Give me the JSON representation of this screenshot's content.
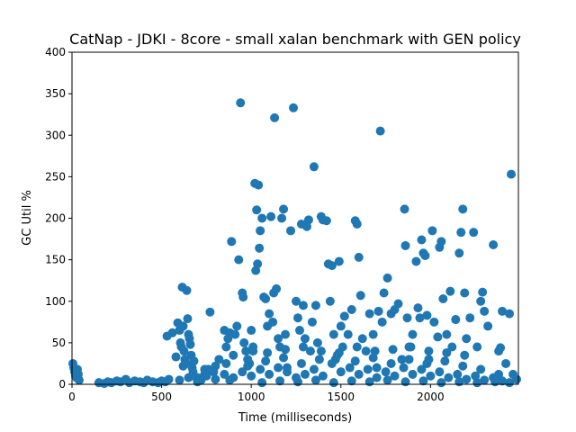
{
  "chart_data": {
    "type": "scatter",
    "title": "CatNap - JDKI - 8core -  small xalan benchmark with GEN policy",
    "xlabel": "Time (milliseconds)",
    "ylabel": "GC Util %",
    "xlim": [
      0,
      2490
    ],
    "ylim": [
      0,
      400
    ],
    "xticks": [
      0,
      500,
      1000,
      1500,
      2000
    ],
    "yticks": [
      0,
      50,
      100,
      150,
      200,
      250,
      300,
      350,
      400
    ],
    "grid": false,
    "color": "#1f77b4",
    "series": [
      {
        "points": [
          [
            5,
            25
          ],
          [
            10,
            20
          ],
          [
            15,
            15
          ],
          [
            20,
            10
          ],
          [
            25,
            8
          ],
          [
            30,
            18
          ],
          [
            35,
            12
          ],
          [
            40,
            5
          ],
          [
            150,
            2
          ],
          [
            180,
            1
          ],
          [
            200,
            3
          ],
          [
            220,
            2
          ],
          [
            250,
            4
          ],
          [
            270,
            3
          ],
          [
            300,
            6
          ],
          [
            320,
            2
          ],
          [
            350,
            4
          ],
          [
            380,
            3
          ],
          [
            400,
            2
          ],
          [
            420,
            5
          ],
          [
            450,
            3
          ],
          [
            480,
            2
          ],
          [
            500,
            4
          ],
          [
            520,
            3
          ],
          [
            540,
            6
          ],
          [
            530,
            58
          ],
          [
            560,
            62
          ],
          [
            580,
            33
          ],
          [
            590,
            74
          ],
          [
            600,
            65
          ],
          [
            605,
            50
          ],
          [
            610,
            45
          ],
          [
            615,
            117
          ],
          [
            620,
            70
          ],
          [
            625,
            40
          ],
          [
            630,
            30
          ],
          [
            635,
            25
          ],
          [
            640,
            113
          ],
          [
            645,
            79
          ],
          [
            650,
            60
          ],
          [
            655,
            55
          ],
          [
            660,
            48
          ],
          [
            665,
            35
          ],
          [
            670,
            20
          ],
          [
            675,
            15
          ],
          [
            680,
            10
          ],
          [
            700,
            8
          ],
          [
            720,
            5
          ],
          [
            740,
            12
          ],
          [
            760,
            18
          ],
          [
            770,
            87
          ],
          [
            790,
            15
          ],
          [
            800,
            22
          ],
          [
            820,
            30
          ],
          [
            850,
            65
          ],
          [
            860,
            45
          ],
          [
            870,
            55
          ],
          [
            880,
            62
          ],
          [
            890,
            172
          ],
          [
            900,
            35
          ],
          [
            910,
            60
          ],
          [
            920,
            70
          ],
          [
            930,
            150
          ],
          [
            940,
            339
          ],
          [
            950,
            110
          ],
          [
            955,
            105
          ],
          [
            960,
            50
          ],
          [
            970,
            40
          ],
          [
            980,
            30
          ],
          [
            990,
            25
          ],
          [
            1000,
            65
          ],
          [
            1010,
            45
          ],
          [
            1020,
            242
          ],
          [
            1025,
            137
          ],
          [
            1030,
            210
          ],
          [
            1035,
            145
          ],
          [
            1040,
            240
          ],
          [
            1045,
            164
          ],
          [
            1050,
            185
          ],
          [
            1060,
            200
          ],
          [
            1070,
            105
          ],
          [
            1080,
            103
          ],
          [
            1090,
            70
          ],
          [
            1100,
            85
          ],
          [
            1110,
            202
          ],
          [
            1120,
            75
          ],
          [
            1125,
            110
          ],
          [
            1130,
            321
          ],
          [
            1140,
            115
          ],
          [
            1150,
            55
          ],
          [
            1160,
            45
          ],
          [
            1170,
            200
          ],
          [
            1180,
            211
          ],
          [
            1190,
            60
          ],
          [
            1200,
            20
          ],
          [
            1220,
            185
          ],
          [
            1235,
            333
          ],
          [
            1250,
            100
          ],
          [
            1260,
            80
          ],
          [
            1270,
            65
          ],
          [
            1280,
            193
          ],
          [
            1290,
            95
          ],
          [
            1300,
            55
          ],
          [
            1310,
            190
          ],
          [
            1320,
            198
          ],
          [
            1330,
            40
          ],
          [
            1340,
            75
          ],
          [
            1350,
            262
          ],
          [
            1360,
            95
          ],
          [
            1370,
            50
          ],
          [
            1390,
            202
          ],
          [
            1400,
            198
          ],
          [
            1420,
            197
          ],
          [
            1430,
            145
          ],
          [
            1440,
            100
          ],
          [
            1450,
            143
          ],
          [
            1460,
            60
          ],
          [
            1470,
            30
          ],
          [
            1490,
            148
          ],
          [
            1500,
            70
          ],
          [
            1510,
            45
          ],
          [
            1520,
            82
          ],
          [
            1540,
            60
          ],
          [
            1560,
            90
          ],
          [
            1580,
            197
          ],
          [
            1590,
            193
          ],
          [
            1600,
            153
          ],
          [
            1610,
            107
          ],
          [
            1620,
            55
          ],
          [
            1640,
            40
          ],
          [
            1660,
            85
          ],
          [
            1680,
            60
          ],
          [
            1700,
            20
          ],
          [
            1710,
            88
          ],
          [
            1720,
            305
          ],
          [
            1730,
            75
          ],
          [
            1740,
            110
          ],
          [
            1760,
            128
          ],
          [
            1780,
            85
          ],
          [
            1800,
            90
          ],
          [
            1820,
            97
          ],
          [
            1840,
            30
          ],
          [
            1855,
            211
          ],
          [
            1860,
            167
          ],
          [
            1870,
            80
          ],
          [
            1880,
            45
          ],
          [
            1900,
            60
          ],
          [
            1920,
            148
          ],
          [
            1930,
            92
          ],
          [
            1940,
            80
          ],
          [
            1950,
            174
          ],
          [
            1960,
            158
          ],
          [
            1970,
            155
          ],
          [
            1980,
            83
          ],
          [
            1990,
            30
          ],
          [
            2010,
            185
          ],
          [
            2020,
            75
          ],
          [
            2040,
            57
          ],
          [
            2050,
            165
          ],
          [
            2060,
            172
          ],
          [
            2070,
            103
          ],
          [
            2090,
            60
          ],
          [
            2110,
            112
          ],
          [
            2120,
            45
          ],
          [
            2140,
            78
          ],
          [
            2160,
            158
          ],
          [
            2170,
            183
          ],
          [
            2180,
            211
          ],
          [
            2190,
            110
          ],
          [
            2200,
            55
          ],
          [
            2220,
            80
          ],
          [
            2240,
            183
          ],
          [
            2260,
            45
          ],
          [
            2280,
            100
          ],
          [
            2290,
            111
          ],
          [
            2300,
            88
          ],
          [
            2320,
            70
          ],
          [
            2350,
            168
          ],
          [
            2380,
            40
          ],
          [
            2390,
            44
          ],
          [
            2400,
            88
          ],
          [
            2420,
            25
          ],
          [
            2440,
            85
          ],
          [
            2450,
            253
          ],
          [
            2460,
            12
          ],
          [
            2480,
            6
          ],
          [
            600,
            5
          ],
          [
            650,
            8
          ],
          [
            700,
            3
          ],
          [
            750,
            10
          ],
          [
            800,
            6
          ],
          [
            850,
            12
          ],
          [
            900,
            8
          ],
          [
            950,
            15
          ],
          [
            1000,
            10
          ],
          [
            1050,
            18
          ],
          [
            1100,
            12
          ],
          [
            1150,
            20
          ],
          [
            1200,
            15
          ],
          [
            1250,
            8
          ],
          [
            1300,
            12
          ],
          [
            1350,
            18
          ],
          [
            1400,
            10
          ],
          [
            1450,
            25
          ],
          [
            1500,
            15
          ],
          [
            1550,
            20
          ],
          [
            1600,
            12
          ],
          [
            1650,
            18
          ],
          [
            1700,
            8
          ],
          [
            1750,
            15
          ],
          [
            1800,
            10
          ],
          [
            1850,
            20
          ],
          [
            1900,
            12
          ],
          [
            1950,
            18
          ],
          [
            2000,
            10
          ],
          [
            2050,
            15
          ],
          [
            2100,
            8
          ],
          [
            2150,
            12
          ],
          [
            2200,
            6
          ],
          [
            2250,
            10
          ],
          [
            2300,
            5
          ],
          [
            2350,
            8
          ],
          [
            2400,
            4
          ],
          [
            620,
            22
          ],
          [
            680,
            28
          ],
          [
            740,
            18
          ],
          [
            860,
            25
          ],
          [
            980,
            22
          ],
          [
            1080,
            28
          ],
          [
            1180,
            32
          ],
          [
            1280,
            25
          ],
          [
            1380,
            30
          ],
          [
            1480,
            35
          ],
          [
            1580,
            28
          ],
          [
            1680,
            32
          ],
          [
            1780,
            25
          ],
          [
            1880,
            30
          ],
          [
            1980,
            25
          ],
          [
            2080,
            28
          ],
          [
            2180,
            22
          ],
          [
            2280,
            18
          ],
          [
            2380,
            12
          ],
          [
            1010,
            40
          ],
          [
            1090,
            38
          ],
          [
            1190,
            42
          ],
          [
            1290,
            45
          ],
          [
            1390,
            40
          ],
          [
            1490,
            38
          ],
          [
            1590,
            45
          ],
          [
            1690,
            40
          ],
          [
            1790,
            42
          ],
          [
            1890,
            45
          ],
          [
            1990,
            40
          ],
          [
            2090,
            38
          ],
          [
            2190,
            35
          ],
          [
            880,
            5
          ],
          [
            1060,
            2
          ],
          [
            1160,
            4
          ],
          [
            1260,
            3
          ],
          [
            1360,
            5
          ],
          [
            1460,
            2
          ],
          [
            1560,
            4
          ],
          [
            1660,
            3
          ],
          [
            1760,
            5
          ],
          [
            1860,
            3
          ],
          [
            1960,
            4
          ],
          [
            2060,
            2
          ],
          [
            2160,
            3
          ],
          [
            2260,
            2
          ],
          [
            2360,
            3
          ],
          [
            2440,
            2
          ]
        ]
      }
    ]
  }
}
